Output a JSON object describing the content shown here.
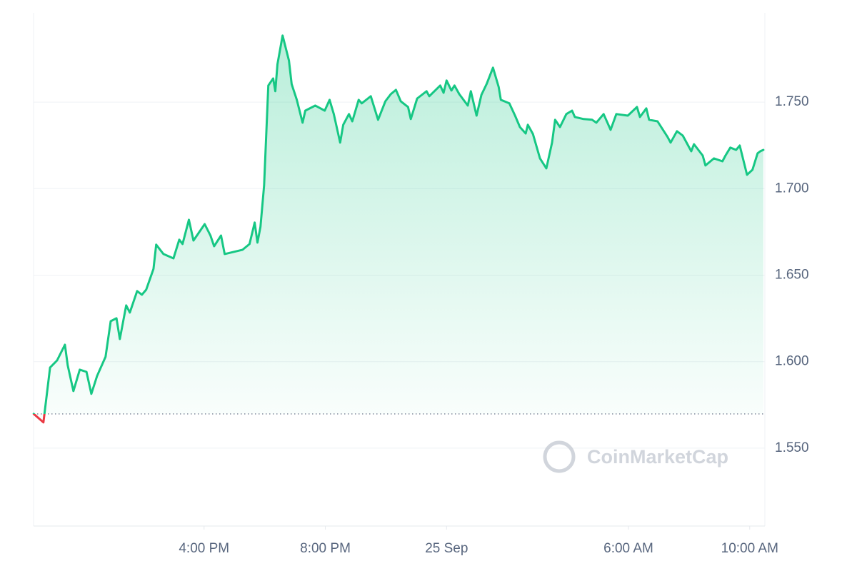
{
  "chart_data": {
    "type": "line",
    "color": "#16c784",
    "below_color": "#ea3943",
    "baseline": 1.5698,
    "watermark": "CoinMarketCap",
    "x": [
      10.38,
      10.7,
      10.92,
      11.15,
      11.41,
      11.5,
      11.69,
      11.9,
      12.12,
      12.28,
      12.47,
      12.75,
      12.92,
      13.11,
      13.22,
      13.43,
      13.55,
      13.79,
      13.95,
      14.09,
      14.33,
      14.42,
      14.66,
      14.99,
      15.18,
      15.29,
      15.5,
      15.65,
      16.02,
      16.21,
      16.33,
      16.56,
      16.68,
      17.27,
      17.5,
      17.67,
      17.76,
      17.86,
      17.98,
      18.12,
      18.28,
      18.35,
      18.42,
      18.59,
      18.8,
      18.89,
      19.06,
      19.25,
      19.34,
      19.67,
      19.98,
      20.14,
      20.28,
      20.49,
      20.59,
      20.78,
      20.89,
      21.1,
      21.2,
      21.5,
      21.74,
      21.98,
      22.16,
      22.33,
      22.49,
      22.73,
      22.82,
      23.03,
      23.34,
      23.43,
      23.79,
      23.9,
      24.0,
      24.16,
      24.26,
      24.42,
      24.7,
      24.8,
      24.99,
      25.15,
      25.32,
      25.53,
      25.72,
      25.79,
      26.07,
      26.26,
      26.42,
      26.61,
      26.68,
      26.85,
      27.08,
      27.29,
      27.48,
      27.58,
      27.74,
      27.95,
      28.14,
      28.23,
      28.52,
      28.8,
      28.94,
      29.18,
      29.41,
      29.6,
      29.98,
      30.28,
      30.38,
      30.59,
      30.68,
      30.96,
      31.29,
      31.39,
      31.6,
      31.79,
      32.07,
      32.16,
      32.45,
      32.54,
      32.82,
      33.1,
      33.2,
      33.36,
      33.55,
      33.67,
      33.91,
      34.09,
      34.26,
      34.35,
      34.45
    ],
    "values": [
      1.5698,
      1.5649,
      1.5966,
      1.6007,
      1.6098,
      1.5979,
      1.583,
      1.5954,
      1.5941,
      1.5814,
      1.5917,
      1.6028,
      1.6234,
      1.6251,
      1.6131,
      1.6325,
      1.6284,
      1.6408,
      1.6387,
      1.6416,
      1.6536,
      1.6676,
      1.6622,
      1.6597,
      1.6705,
      1.668,
      1.682,
      1.67,
      1.6795,
      1.6729,
      1.6667,
      1.6729,
      1.6622,
      1.6647,
      1.668,
      1.6804,
      1.6688,
      1.6779,
      1.7018,
      1.7596,
      1.7637,
      1.7563,
      1.7719,
      1.7885,
      1.774,
      1.7604,
      1.7513,
      1.7381,
      1.7451,
      1.748,
      1.7451,
      1.7513,
      1.7431,
      1.7266,
      1.7369,
      1.7431,
      1.7389,
      1.7513,
      1.7493,
      1.7534,
      1.7398,
      1.7505,
      1.7546,
      1.7571,
      1.7505,
      1.7472,
      1.7402,
      1.7521,
      1.7563,
      1.7534,
      1.7596,
      1.7554,
      1.7625,
      1.7567,
      1.7596,
      1.7546,
      1.748,
      1.7563,
      1.7422,
      1.7542,
      1.7604,
      1.7699,
      1.7587,
      1.7513,
      1.7493,
      1.7422,
      1.7356,
      1.7319,
      1.7369,
      1.7315,
      1.7175,
      1.7117,
      1.7266,
      1.7398,
      1.7356,
      1.7431,
      1.7451,
      1.7414,
      1.7402,
      1.7398,
      1.7381,
      1.7431,
      1.734,
      1.7431,
      1.7422,
      1.7472,
      1.7414,
      1.7464,
      1.7398,
      1.7389,
      1.7299,
      1.7266,
      1.7332,
      1.7307,
      1.7216,
      1.7257,
      1.7191,
      1.7134,
      1.7175,
      1.7158,
      1.7191,
      1.7237,
      1.7224,
      1.7249,
      1.708,
      1.7109,
      1.7204,
      1.7216,
      1.7224
    ],
    "xlim": [
      10.375,
      34.5
    ],
    "xticks": [
      {
        "value": 16,
        "label": "4:00 PM"
      },
      {
        "value": 20,
        "label": "8:00 PM"
      },
      {
        "value": 24,
        "label": "25 Sep"
      },
      {
        "value": 30,
        "label": "6:00 AM"
      },
      {
        "value": 34,
        "label": "10:00 AM"
      }
    ],
    "ylim": [
      1.505,
      1.8016
    ],
    "yticks": [
      {
        "value": 1.55,
        "label": "1.550"
      },
      {
        "value": 1.6,
        "label": "1.600"
      },
      {
        "value": 1.65,
        "label": "1.650"
      },
      {
        "value": 1.7,
        "label": "1.700"
      },
      {
        "value": 1.75,
        "label": "1.750"
      }
    ],
    "grid": true
  }
}
